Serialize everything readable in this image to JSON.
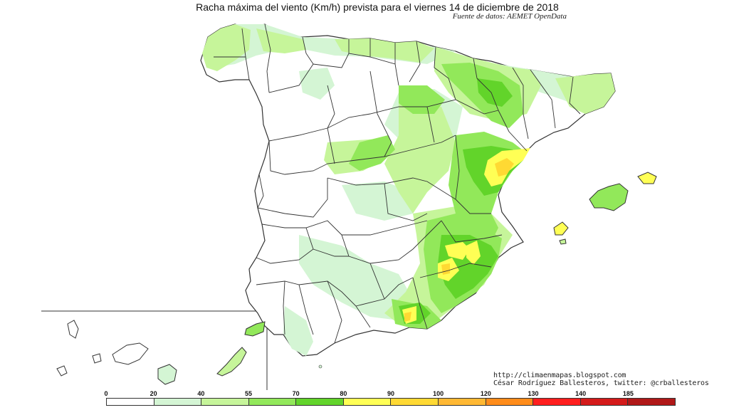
{
  "title": "Racha máxima del viento (Km/h) prevista para el viernes 14 de diciembre de 2018",
  "subtitle": "Fuente de datos: AEMET OpenData",
  "credits": {
    "url": "http://climaenmapas.blogspot.com",
    "author": "César Rodríguez Ballesteros, twitter: @crballesteros"
  },
  "legend": {
    "ticks": [
      "0",
      "20",
      "40",
      "55",
      "70",
      "80",
      "90",
      "100",
      "120",
      "130",
      "140",
      "185"
    ],
    "colors": [
      "#ffffff",
      "#d4f5d4",
      "#c6f59a",
      "#92e85a",
      "#62d42a",
      "#ffff55",
      "#ffd933",
      "#ffb833",
      "#ff8c1a",
      "#ff1e1e",
      "#d41a1a",
      "#b01818"
    ]
  },
  "colors": {
    "land": "#ffffff",
    "border": "#333333",
    "wind_20_40": "#d4f5d4",
    "wind_40_55": "#c6f59a",
    "wind_55_70": "#92e85a",
    "wind_70_80": "#62d42a",
    "wind_80_90": "#ffff55",
    "wind_90_100": "#ffd933"
  }
}
